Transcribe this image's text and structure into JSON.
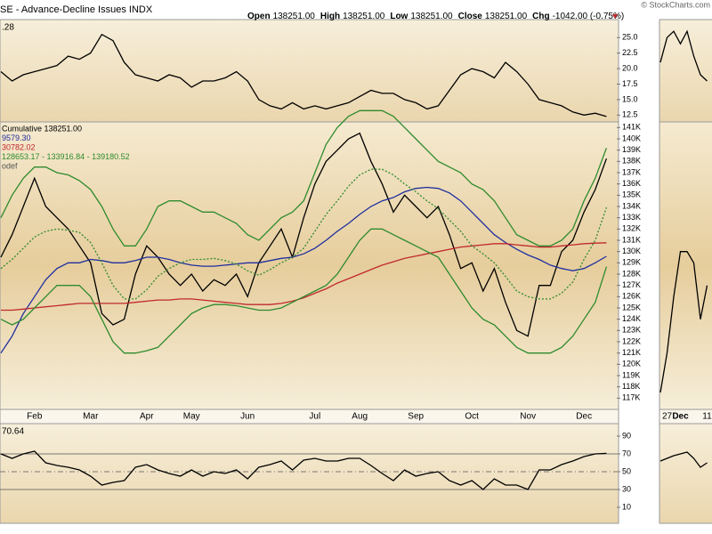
{
  "header": {
    "title": "SE - Advance-Decline Issues INDX",
    "copyright": "© StockCharts.com",
    "quote": [
      {
        "label": "Open",
        "value": "138251.00"
      },
      {
        "label": "High",
        "value": "138251.00"
      },
      {
        "label": "Low",
        "value": "138251.00"
      },
      {
        "label": "Close",
        "value": "138251.00"
      },
      {
        "label": "Chg",
        "value": "-1042.00 (-0.75%)"
      }
    ]
  },
  "chart_data": [
    {
      "type": "line",
      "label": ".28",
      "ylim": [
        11.4,
        27.9
      ],
      "yticks": [
        {
          "value": 25,
          "label": "25.0"
        },
        22.5,
        {
          "value": 20,
          "label": "20.0"
        },
        17.5,
        {
          "value": 15,
          "label": "15.0"
        },
        12.5
      ],
      "series": [
        {
          "color": "#000000",
          "values": [
            19.5,
            18,
            19,
            19.5,
            20,
            20.5,
            22,
            21.5,
            22.5,
            25.5,
            24.5,
            21,
            19,
            18.5,
            18,
            19,
            18.5,
            17,
            18,
            18,
            18.5,
            19.5,
            18,
            15,
            14,
            13.5,
            14.5,
            13.5,
            14,
            13.5,
            14,
            14.5,
            15.5,
            16.5,
            16,
            16,
            15,
            14.5,
            13.5,
            14,
            16.5,
            19,
            20,
            19.5,
            18.5,
            21,
            19.5,
            17.5,
            15,
            14.5,
            14,
            13,
            12.5,
            12.8,
            12.28
          ]
        }
      ]
    },
    {
      "type": "line",
      "note": "odef",
      "ylim": [
        116000,
        141500
      ],
      "categories": [
        null,
        null,
        null,
        "Feb",
        null,
        null,
        null,
        null,
        "Mar",
        null,
        null,
        null,
        null,
        "Apr",
        null,
        null,
        null,
        "May",
        null,
        null,
        null,
        null,
        "Jun",
        null,
        null,
        null,
        null,
        null,
        "Jul",
        null,
        null,
        null,
        "Aug",
        null,
        null,
        null,
        null,
        "Sep",
        null,
        null,
        null,
        null,
        "Oct",
        null,
        null,
        null,
        null,
        "Nov",
        null,
        null,
        null,
        null,
        "Dec",
        null,
        null
      ],
      "yticks": [
        {
          "value": 141000,
          "label": "141K"
        },
        {
          "value": 140000,
          "label": "140K"
        },
        {
          "value": 139000,
          "label": "139K"
        },
        {
          "value": 138000,
          "label": "138K"
        },
        {
          "value": 137000,
          "label": "137K"
        },
        {
          "value": 136000,
          "label": "136K"
        },
        {
          "value": 135000,
          "label": "135K"
        },
        {
          "value": 134000,
          "label": "134K"
        },
        {
          "value": 133000,
          "label": "133K"
        },
        {
          "value": 132000,
          "label": "132K"
        },
        {
          "value": 131000,
          "label": "131K"
        },
        {
          "value": 130000,
          "label": "130K"
        },
        {
          "value": 129000,
          "label": "129K"
        },
        {
          "value": 128000,
          "label": "128K"
        },
        {
          "value": 127000,
          "label": "127K"
        },
        {
          "value": 126000,
          "label": "126K"
        },
        {
          "value": 125000,
          "label": "125K"
        },
        {
          "value": 124000,
          "label": "124K"
        },
        {
          "value": 123000,
          "label": "123K"
        },
        {
          "value": 122000,
          "label": "122K"
        },
        {
          "value": 121000,
          "label": "121K"
        },
        {
          "value": 120000,
          "label": "120K"
        },
        {
          "value": 119000,
          "label": "119K"
        },
        {
          "value": 118000,
          "label": "118K"
        },
        {
          "value": 117000,
          "label": "117K"
        }
      ],
      "series": [
        {
          "name": "Cumulative 138251.00",
          "color": "#000000",
          "values": [
            129500,
            131500,
            134000,
            136500,
            134000,
            133000,
            132000,
            130500,
            129000,
            124500,
            123500,
            124000,
            128000,
            130500,
            129500,
            128000,
            127000,
            128000,
            126500,
            127500,
            127000,
            128000,
            126000,
            129000,
            130500,
            132000,
            129500,
            133000,
            136000,
            138000,
            139000,
            140000,
            140500,
            138000,
            136000,
            133500,
            135000,
            134000,
            133000,
            134000,
            131500,
            128500,
            129000,
            126500,
            128500,
            125500,
            123000,
            122500,
            127000,
            127000,
            130000,
            131000,
            133500,
            135500,
            138251
          ]
        },
        {
          "name": "9579.30",
          "color": "#1f2f9f",
          "values": [
            121000,
            122500,
            124500,
            126000,
            127500,
            128500,
            129000,
            129000,
            129300,
            129200,
            129000,
            129000,
            129200,
            129500,
            129500,
            129300,
            129000,
            128800,
            128700,
            128700,
            128800,
            128900,
            129000,
            129000,
            129200,
            129400,
            129500,
            129800,
            130300,
            131000,
            131800,
            132500,
            133300,
            134000,
            134500,
            134800,
            135300,
            135600,
            135700,
            135600,
            135200,
            134500,
            133500,
            132500,
            131500,
            130800,
            130200,
            129700,
            129300,
            128800,
            128500,
            128300,
            128500,
            129000,
            129579.3
          ]
        },
        {
          "name": "30782.02",
          "color": "#c0282d",
          "values": [
            124800,
            124800,
            124900,
            125000,
            125100,
            125200,
            125300,
            125400,
            125400,
            125400,
            125400,
            125400,
            125500,
            125600,
            125700,
            125700,
            125800,
            125800,
            125700,
            125600,
            125500,
            125400,
            125300,
            125300,
            125300,
            125400,
            125600,
            125900,
            126300,
            126700,
            127200,
            127600,
            128000,
            128400,
            128800,
            129100,
            129400,
            129600,
            129800,
            130000,
            130200,
            130400,
            130500,
            130600,
            130700,
            130700,
            130600,
            130500,
            130400,
            130400,
            130500,
            130600,
            130700,
            130750,
            130782.02
          ]
        },
        {
          "color": "#2e8b2e",
          "values": [
            133000,
            135000,
            136500,
            137500,
            137500,
            137000,
            136800,
            136300,
            135500,
            134000,
            132000,
            130500,
            130500,
            132000,
            134000,
            134500,
            134500,
            134000,
            133500,
            133500,
            133000,
            132500,
            131500,
            131000,
            132000,
            133000,
            133500,
            134500,
            137000,
            139500,
            141000,
            142000,
            142500,
            142500,
            142500,
            142000,
            141000,
            140000,
            139000,
            138000,
            137500,
            137000,
            136000,
            135500,
            134500,
            133000,
            131500,
            131000,
            130500,
            130500,
            131000,
            132000,
            134500,
            136500,
            139180.52
          ]
        },
        {
          "name": "128653.17 - 133916.84 - 139180.52",
          "color": "#2e8b2e",
          "dashed": true,
          "values": [
            128500,
            129300,
            130300,
            131300,
            131800,
            132000,
            131900,
            131700,
            130800,
            129000,
            127000,
            125800,
            125800,
            126600,
            127800,
            128500,
            129000,
            129300,
            129300,
            129400,
            129200,
            128900,
            128300,
            127900,
            128400,
            129000,
            129500,
            130300,
            131800,
            133300,
            134500,
            135800,
            136800,
            137300,
            137300,
            136800,
            136000,
            135300,
            134500,
            133800,
            132800,
            131800,
            130500,
            129800,
            129000,
            127800,
            126500,
            126000,
            125800,
            125800,
            126300,
            127300,
            129300,
            131000,
            133916.84
          ]
        },
        {
          "color": "#2e8b2e",
          "values": [
            124000,
            123500,
            124000,
            125000,
            126000,
            127000,
            127000,
            127000,
            126000,
            124000,
            122000,
            121000,
            121000,
            121200,
            121500,
            122500,
            123500,
            124500,
            125000,
            125300,
            125300,
            125200,
            125000,
            124800,
            124800,
            125000,
            125500,
            126000,
            126500,
            127000,
            128000,
            129500,
            131000,
            132000,
            132000,
            131500,
            131000,
            130500,
            130000,
            129500,
            128000,
            126500,
            125000,
            124000,
            123500,
            122500,
            121500,
            121000,
            121000,
            121000,
            121500,
            122500,
            124000,
            125500,
            128653.17
          ]
        }
      ]
    },
    {
      "type": "line",
      "label": "70.64",
      "ylim": [
        -8,
        104
      ],
      "yticks": [
        90,
        70,
        50,
        30,
        10
      ],
      "reference_lines": [
        {
          "value": 70,
          "dashed": false
        },
        {
          "value": 50,
          "dashed": true
        },
        {
          "value": 30,
          "dashed": false
        }
      ],
      "series": [
        {
          "color": "#000000",
          "values": [
            70,
            65,
            70,
            73,
            60,
            57,
            55,
            52,
            45,
            35,
            38,
            40,
            55,
            58,
            52,
            48,
            45,
            52,
            45,
            50,
            48,
            52,
            42,
            55,
            58,
            62,
            52,
            63,
            65,
            62,
            62,
            65,
            65,
            57,
            48,
            40,
            52,
            45,
            48,
            50,
            40,
            35,
            40,
            30,
            42,
            35,
            35,
            30,
            52,
            52,
            58,
            62,
            67,
            70,
            70.64
          ]
        }
      ]
    },
    {
      "type": "line",
      "categories": [
        null,
        "27",
        null,
        "Dec",
        null,
        null,
        null,
        "11"
      ],
      "series": [
        {
          "color": "#000000",
          "values": [
            21,
            25,
            26,
            24,
            26,
            22,
            19,
            18
          ]
        },
        {
          "color": "#000000",
          "values": [
            117500,
            121000,
            126000,
            130000,
            130000,
            129000,
            124000,
            127000
          ]
        },
        {
          "color": "#000000",
          "values": [
            62,
            65,
            68,
            70,
            72,
            65,
            55,
            60
          ]
        }
      ]
    }
  ]
}
